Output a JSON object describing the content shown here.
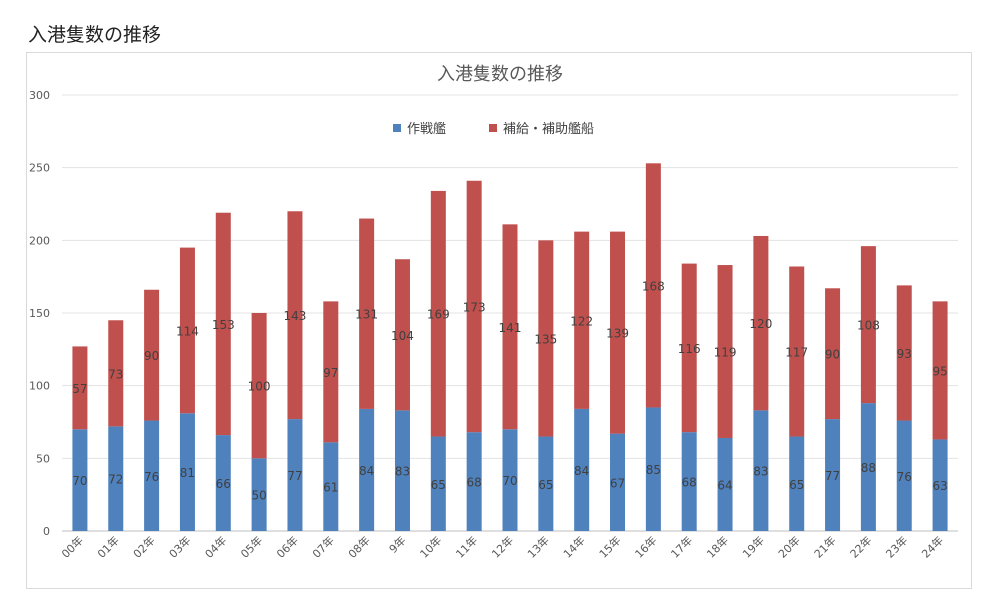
{
  "page": {
    "heading": "入港隻数の推移"
  },
  "chart_data": {
    "type": "bar",
    "stacked": true,
    "title": "入港隻数の推移",
    "categories": [
      "00年",
      "01年",
      "02年",
      "03年",
      "04年",
      "05年",
      "06年",
      "07年",
      "08年",
      "9年",
      "10年",
      "11年",
      "12年",
      "13年",
      "14年",
      "15年",
      "16年",
      "17年",
      "18年",
      "19年",
      "20年",
      "21年",
      "22年",
      "23年",
      "24年"
    ],
    "series": [
      {
        "name": "作戦艦",
        "color": "#4f81bd",
        "values": [
          70,
          72,
          76,
          81,
          66,
          50,
          77,
          61,
          84,
          83,
          65,
          68,
          70,
          65,
          84,
          67,
          85,
          68,
          64,
          83,
          65,
          77,
          88,
          76,
          63
        ]
      },
      {
        "name": "補給・補助艦船",
        "color": "#c0504d",
        "values": [
          57,
          73,
          90,
          114,
          153,
          100,
          143,
          97,
          131,
          104,
          169,
          173,
          141,
          135,
          122,
          139,
          168,
          116,
          119,
          120,
          117,
          90,
          108,
          93,
          95
        ]
      }
    ],
    "ylim": [
      0,
      300
    ],
    "yticks": [
      0,
      50,
      100,
      150,
      200,
      250,
      300
    ],
    "grid": true,
    "legend_position": "top-center",
    "xlabel": "",
    "ylabel": ""
  }
}
